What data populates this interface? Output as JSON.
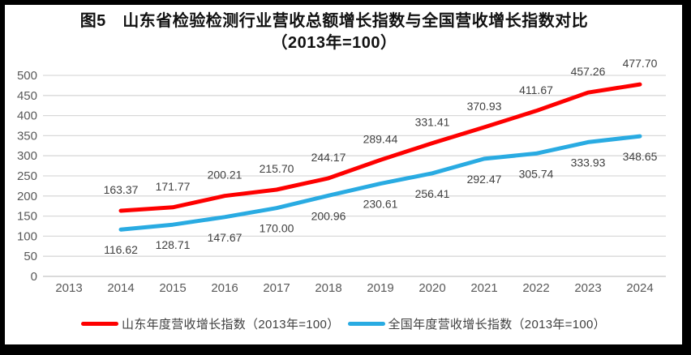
{
  "title": {
    "line1": "图5　山东省检验检测行业营收总额增长指数与全国营收增长指数对比",
    "line2": "（2013年=100）"
  },
  "chart_data": {
    "type": "line",
    "categories": [
      "2013",
      "2014",
      "2015",
      "2016",
      "2017",
      "2018",
      "2019",
      "2020",
      "2021",
      "2022",
      "2023",
      "2024"
    ],
    "series": [
      {
        "name": "山东年度营收增长指数（2013年=100）",
        "color": "#fe0000",
        "start_category": "2014",
        "label_side": "above",
        "values": [
          163.37,
          171.77,
          200.21,
          215.7,
          244.17,
          289.44,
          331.41,
          370.93,
          411.67,
          457.26,
          477.7
        ]
      },
      {
        "name": "全国年度营收增长指数（2013年=100）",
        "color": "#29abe2",
        "start_category": "2014",
        "label_side": "below",
        "values": [
          116.62,
          128.71,
          147.67,
          170.0,
          200.96,
          230.61,
          256.41,
          292.47,
          305.74,
          333.93,
          348.65
        ]
      }
    ],
    "ylim": [
      0,
      500
    ],
    "ytick_step": 50,
    "grid": true,
    "legend_position": "bottom",
    "colors": {
      "grid": "#d9d9d9",
      "axis_line": "#c3c3c3",
      "tick_label": "#595959",
      "data_label": "#3f3f3f",
      "panel_background": "#ffffff",
      "frame": "#000000"
    },
    "label_decimals": 2
  }
}
